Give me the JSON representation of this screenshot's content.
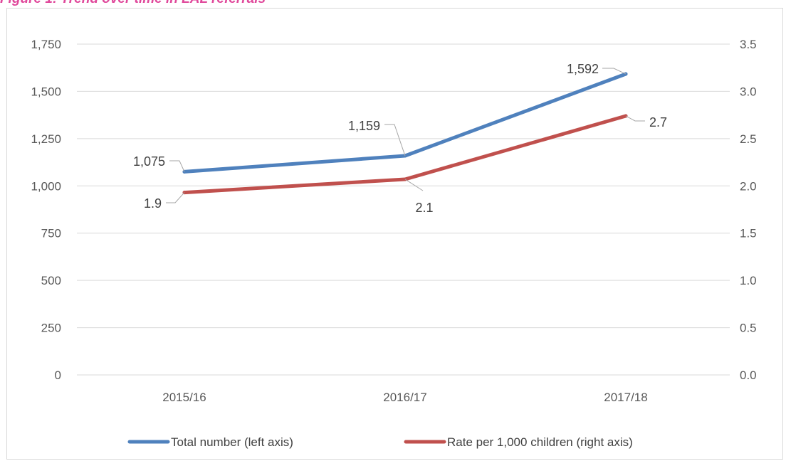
{
  "figure_title": "Figure 1: Trend over time in LAL referrals",
  "chart_data": {
    "type": "line",
    "categories": [
      "2015/16",
      "2016/17",
      "2017/18"
    ],
    "left_axis": {
      "ylim": [
        0,
        1750
      ],
      "ticks": [
        "0",
        "250",
        "500",
        "750",
        "1,000",
        "1,250",
        "1,500",
        "1,750"
      ],
      "tick_values": [
        0,
        250,
        500,
        750,
        1000,
        1250,
        1500,
        1750
      ]
    },
    "right_axis": {
      "ylim": [
        0,
        3.5
      ],
      "ticks": [
        "0.0",
        "0.5",
        "1.0",
        "1.5",
        "2.0",
        "2.5",
        "3.0",
        "3.5"
      ],
      "tick_values": [
        0,
        0.5,
        1.0,
        1.5,
        2.0,
        2.5,
        3.0,
        3.5
      ]
    },
    "series": [
      {
        "name": "Total number (left axis)",
        "axis": "left",
        "color": "#4f81bd",
        "values": [
          1075,
          1159,
          1592
        ],
        "labels": [
          "1,075",
          "1,159",
          "1,592"
        ]
      },
      {
        "name": "Rate per 1,000 children (right axis)",
        "axis": "right",
        "color": "#c0504d",
        "values": [
          1.93,
          2.07,
          2.74
        ],
        "labels": [
          "1.9",
          "2.1",
          "2.7"
        ]
      }
    ],
    "grid": true,
    "legend_position": "bottom"
  }
}
